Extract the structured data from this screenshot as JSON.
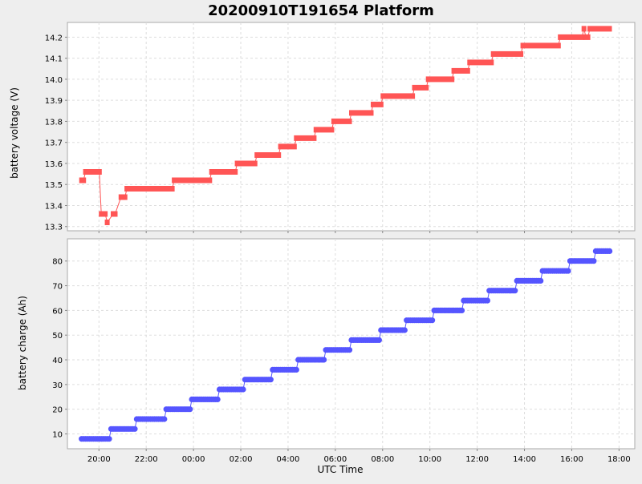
{
  "chart_data": [
    {
      "type": "line",
      "title": "20200910T191654 Platform",
      "xlabel": "UTC Time",
      "ylabel": "battery voltage (V)",
      "x_tick_labels": [
        "20:00",
        "22:00",
        "00:00",
        "02:00",
        "04:00",
        "06:00",
        "08:00",
        "10:00",
        "12:00",
        "14:00",
        "16:00",
        "18:00"
      ],
      "y_ticks": [
        13.3,
        13.4,
        13.5,
        13.6,
        13.7,
        13.8,
        13.9,
        14.0,
        14.1,
        14.2
      ],
      "y_tick_labels": [
        "13.3",
        "13.4",
        "13.5",
        "13.6",
        "13.7",
        "13.8",
        "13.9",
        "14.0",
        "14.1",
        "14.2"
      ],
      "ylim": [
        13.28,
        14.27
      ],
      "xlim": [
        "2020-09-10 18:40",
        "2020-09-11 18:40"
      ],
      "grid": true,
      "color": "#ff5555",
      "x": [
        "2020-09-10 19:16",
        "2020-09-10 19:21",
        "2020-09-10 19:26",
        "2020-09-10 20:01",
        "2020-09-10 20:06",
        "2020-09-10 20:16",
        "2020-09-10 20:21",
        "2020-09-10 20:36",
        "2020-09-10 20:41",
        "2020-09-10 20:56",
        "2020-09-10 21:06",
        "2020-09-10 21:11",
        "2020-09-10 23:06",
        "2020-09-10 23:11",
        "2020-09-11 00:41",
        "2020-09-11 00:46",
        "2020-09-11 01:46",
        "2020-09-11 01:51",
        "2020-09-11 02:36",
        "2020-09-11 02:41",
        "2020-09-11 03:36",
        "2020-09-11 03:41",
        "2020-09-11 04:16",
        "2020-09-11 04:21",
        "2020-09-11 05:06",
        "2020-09-11 05:11",
        "2020-09-11 05:51",
        "2020-09-11 05:56",
        "2020-09-11 06:36",
        "2020-09-11 06:41",
        "2020-09-11 07:31",
        "2020-09-11 07:36",
        "2020-09-11 07:56",
        "2020-09-11 08:01",
        "2020-09-11 09:16",
        "2020-09-11 09:21",
        "2020-09-11 09:51",
        "2020-09-11 09:56",
        "2020-09-11 10:56",
        "2020-09-11 11:01",
        "2020-09-11 11:36",
        "2020-09-11 11:41",
        "2020-09-11 12:36",
        "2020-09-11 12:41",
        "2020-09-11 13:51",
        "2020-09-11 13:56",
        "2020-09-11 15:26",
        "2020-09-11 15:31",
        "2020-09-11 16:26",
        "2020-09-11 16:31",
        "2020-09-11 16:36",
        "2020-09-11 16:41",
        "2020-09-11 16:46",
        "2020-09-11 17:36"
      ],
      "y": [
        13.52,
        13.52,
        13.56,
        13.56,
        13.36,
        13.36,
        13.32,
        13.36,
        13.36,
        13.44,
        13.44,
        13.48,
        13.48,
        13.52,
        13.52,
        13.56,
        13.56,
        13.6,
        13.6,
        13.64,
        13.64,
        13.68,
        13.68,
        13.72,
        13.72,
        13.76,
        13.76,
        13.8,
        13.8,
        13.84,
        13.84,
        13.88,
        13.88,
        13.92,
        13.92,
        13.96,
        13.96,
        14.0,
        14.0,
        14.04,
        14.04,
        14.08,
        14.08,
        14.12,
        14.12,
        14.16,
        14.16,
        14.2,
        14.2,
        14.24,
        14.2,
        14.2,
        14.24,
        14.24
      ]
    },
    {
      "type": "line",
      "xlabel": "UTC Time",
      "ylabel": "battery charge (Ah)",
      "x_tick_labels": [
        "20:00",
        "22:00",
        "00:00",
        "02:00",
        "04:00",
        "06:00",
        "08:00",
        "10:00",
        "12:00",
        "14:00",
        "16:00",
        "18:00"
      ],
      "y_ticks": [
        10,
        20,
        30,
        40,
        50,
        60,
        70,
        80
      ],
      "y_tick_labels": [
        "10",
        "20",
        "30",
        "40",
        "50",
        "60",
        "70",
        "80"
      ],
      "ylim": [
        4,
        89
      ],
      "xlim": [
        "2020-09-10 18:40",
        "2020-09-11 18:40"
      ],
      "grid": true,
      "color": "#5555ff",
      "steps": [
        {
          "start": "2020-09-10 19:16",
          "end": "2020-09-10 20:26",
          "value": 8
        },
        {
          "start": "2020-09-10 20:31",
          "end": "2020-09-10 21:31",
          "value": 12
        },
        {
          "start": "2020-09-10 21:36",
          "end": "2020-09-10 22:46",
          "value": 16
        },
        {
          "start": "2020-09-10 22:51",
          "end": "2020-09-10 23:51",
          "value": 20
        },
        {
          "start": "2020-09-10 23:56",
          "end": "2020-09-11 01:01",
          "value": 24
        },
        {
          "start": "2020-09-11 01:06",
          "end": "2020-09-11 02:06",
          "value": 28
        },
        {
          "start": "2020-09-11 02:11",
          "end": "2020-09-11 03:16",
          "value": 32
        },
        {
          "start": "2020-09-11 03:21",
          "end": "2020-09-11 04:21",
          "value": 36
        },
        {
          "start": "2020-09-11 04:26",
          "end": "2020-09-11 05:31",
          "value": 40
        },
        {
          "start": "2020-09-11 05:36",
          "end": "2020-09-11 06:36",
          "value": 44
        },
        {
          "start": "2020-09-11 06:41",
          "end": "2020-09-11 07:51",
          "value": 48
        },
        {
          "start": "2020-09-11 07:56",
          "end": "2020-09-11 08:56",
          "value": 52
        },
        {
          "start": "2020-09-11 09:01",
          "end": "2020-09-11 10:06",
          "value": 56
        },
        {
          "start": "2020-09-11 10:11",
          "end": "2020-09-11 11:21",
          "value": 60
        },
        {
          "start": "2020-09-11 11:26",
          "end": "2020-09-11 12:26",
          "value": 64
        },
        {
          "start": "2020-09-11 12:31",
          "end": "2020-09-11 13:36",
          "value": 68
        },
        {
          "start": "2020-09-11 13:41",
          "end": "2020-09-11 14:41",
          "value": 72
        },
        {
          "start": "2020-09-11 14:46",
          "end": "2020-09-11 15:51",
          "value": 76
        },
        {
          "start": "2020-09-11 15:56",
          "end": "2020-09-11 16:56",
          "value": 80
        },
        {
          "start": "2020-09-11 17:01",
          "end": "2020-09-11 17:36",
          "value": 84
        }
      ]
    }
  ]
}
